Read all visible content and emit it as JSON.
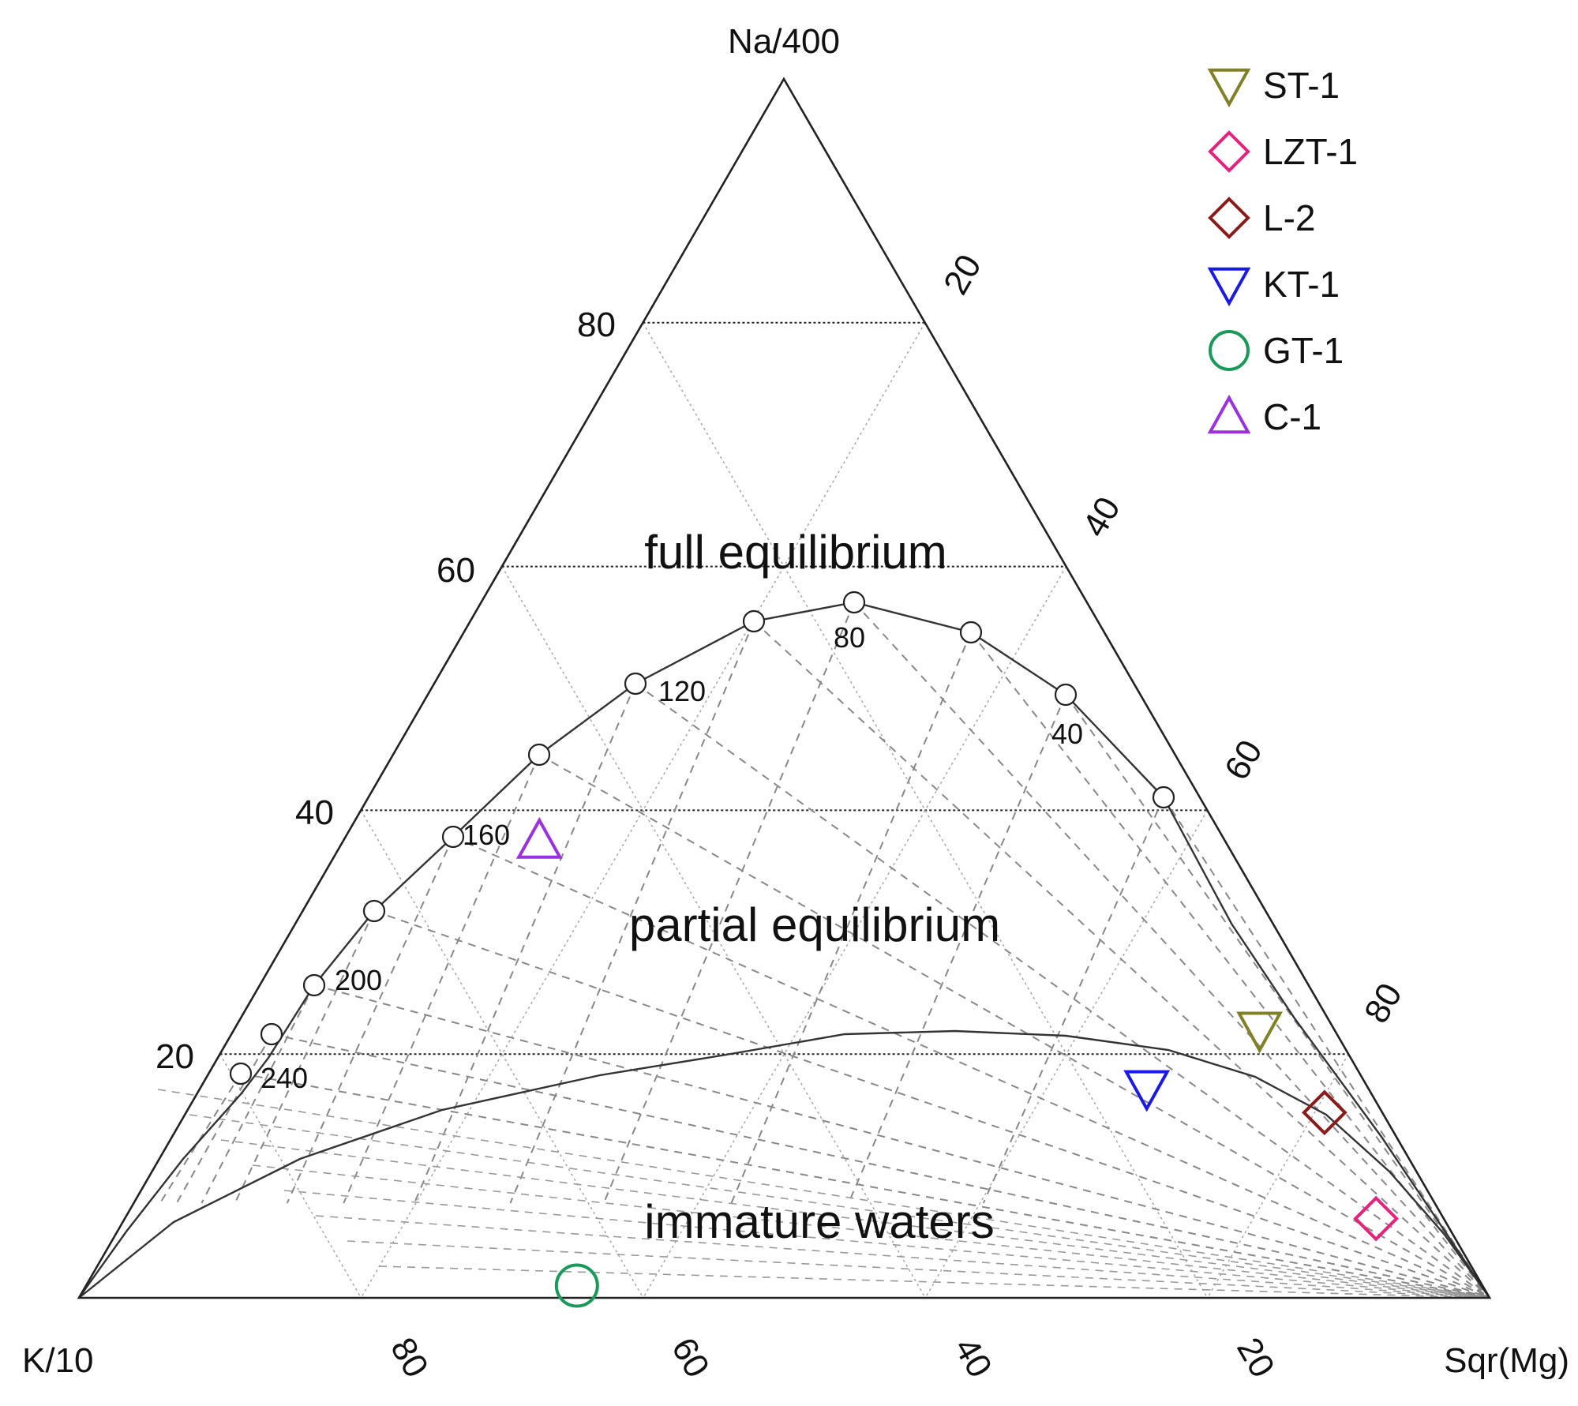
{
  "chart_data": {
    "type": "ternary",
    "vertices": {
      "top": "Na/400",
      "left": "K/10",
      "right": "Sqr(Mg)"
    },
    "grid": true,
    "na_axis_ticks": [
      "20",
      "40",
      "60",
      "80"
    ],
    "mg_axis_ticks": [
      "20",
      "40",
      "60",
      "80"
    ],
    "k_axis_ticks": [
      "80",
      "60",
      "40",
      "20"
    ],
    "regions": {
      "full": "full equilibrium",
      "partial": "partial equilibrium",
      "immature": "immature waters"
    },
    "temperature_labels": [
      "40",
      "80",
      "120",
      "160",
      "200",
      "240"
    ],
    "equilibrium_points_temp_c": [
      20,
      40,
      60,
      80,
      100,
      120,
      140,
      160,
      180,
      200,
      220,
      240
    ],
    "legend_position": "top-right",
    "series": [
      {
        "name": "ST-1",
        "marker": "triangle-down",
        "color": "#808026",
        "na": 22,
        "k": 5.3,
        "mg": 72.7
      },
      {
        "name": "LZT-1",
        "marker": "diamond",
        "color": "#e8217d",
        "na": 6.5,
        "k": 4.8,
        "mg": 88.7
      },
      {
        "name": "L-2",
        "marker": "diamond",
        "color": "#8b1a1a",
        "na": 15.2,
        "k": 4.1,
        "mg": 80.7
      },
      {
        "name": "KT-1",
        "marker": "triangle-down",
        "color": "#1a1ae8",
        "na": 17.2,
        "k": 15.7,
        "mg": 67.1
      },
      {
        "name": "GT-1",
        "marker": "circle",
        "color": "#1a9a5a",
        "na": 1,
        "k": 64.2,
        "mg": 34.8
      },
      {
        "name": "C-1",
        "marker": "triangle-up",
        "color": "#9b30e0",
        "na": 37.5,
        "k": 48.6,
        "mg": 13.9
      }
    ]
  }
}
